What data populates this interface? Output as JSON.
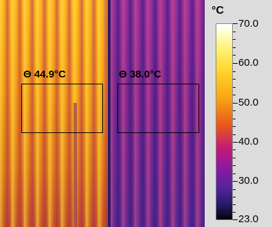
{
  "thermal_image": {
    "rois": [
      {
        "symbol": "Θ",
        "value": "44.9°C"
      },
      {
        "symbol": "Θ",
        "value": "38.0°C"
      }
    ]
  },
  "scale": {
    "unit": "°C",
    "max": "70.0",
    "labels": [
      "70.0",
      "60.0",
      "50.0",
      "40.0",
      "30.0",
      "23.0"
    ],
    "min": "23.0"
  }
}
